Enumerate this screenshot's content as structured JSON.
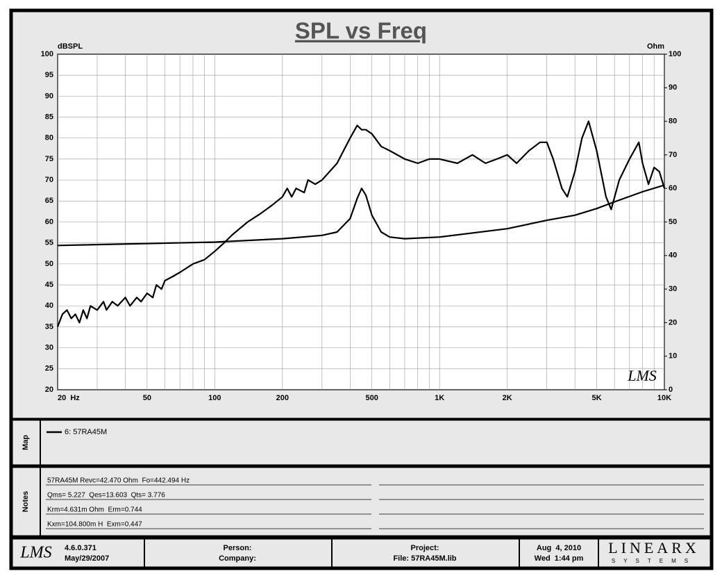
{
  "chart_data": {
    "type": "line",
    "title": "SPL vs Freq",
    "ylabel": "dBSPL",
    "y2label": "Ohm",
    "annotation": "LMS",
    "log_x": true,
    "grid": true,
    "xlim": [
      20,
      10000
    ],
    "xticks": [
      {
        "value": 20,
        "label": "20  Hz"
      },
      50,
      100,
      200,
      500,
      {
        "value": 1000,
        "label": "1K"
      },
      {
        "value": 2000,
        "label": "2K"
      },
      {
        "value": 5000,
        "label": "5K"
      },
      {
        "value": 10000,
        "label": "10K"
      }
    ],
    "xgrid": [
      30,
      40,
      60,
      70,
      80,
      90,
      300,
      400,
      600,
      700,
      800,
      900,
      3000,
      4000,
      6000,
      7000,
      8000,
      9000
    ],
    "ylim": [
      20,
      100
    ],
    "yticks": [
      20,
      25,
      30,
      35,
      40,
      45,
      50,
      55,
      60,
      65,
      70,
      75,
      80,
      85,
      90,
      95,
      100
    ],
    "y2lim": [
      0,
      100
    ],
    "y2ticks": [
      0,
      10,
      20,
      30,
      40,
      50,
      60,
      70,
      80,
      90,
      100
    ],
    "series": [
      {
        "color": "#000000",
        "x": [
          20,
          21,
          22,
          23,
          24,
          25,
          26,
          27,
          28,
          30,
          32,
          33,
          35,
          37,
          40,
          42,
          45,
          47,
          50,
          53,
          55,
          58,
          60,
          65,
          70,
          80,
          90,
          100,
          110,
          120,
          140,
          160,
          180,
          200,
          210,
          220,
          230,
          250,
          260,
          280,
          300,
          350,
          400,
          430,
          450,
          470,
          500,
          550,
          600,
          700,
          800,
          900,
          1000,
          1200,
          1400,
          1600,
          1800,
          2000,
          2200,
          2500,
          2800,
          3000,
          3200,
          3500,
          3700,
          4000,
          4300,
          4600,
          5000,
          5500,
          5800,
          6300,
          7000,
          7700,
          8000,
          8500,
          9000,
          9500,
          10000
        ],
        "values": [
          35,
          38,
          39,
          37,
          38,
          36,
          39,
          37,
          40,
          39,
          41,
          39,
          41,
          40,
          42,
          40,
          42,
          41,
          43,
          42,
          45,
          44,
          46,
          47,
          48,
          50,
          51,
          53,
          55,
          57,
          60,
          62,
          64,
          66,
          68,
          66,
          68,
          67,
          70,
          69,
          70,
          74,
          80,
          83,
          82,
          82,
          81,
          78,
          77,
          75,
          74,
          75,
          75,
          74,
          76,
          74,
          75,
          76,
          74,
          77,
          79,
          79,
          75,
          68,
          66,
          72,
          80,
          84,
          77,
          66,
          63,
          70,
          75,
          79,
          74,
          69,
          73,
          72,
          68
        ]
      },
      {
        "color": "#000000",
        "axis": "y2",
        "x": [
          20,
          100,
          200,
          300,
          350,
          400,
          430,
          450,
          470,
          500,
          550,
          600,
          700,
          1000,
          2000,
          3000,
          4000,
          5000,
          6000,
          8000,
          10000
        ],
        "values": [
          43,
          44,
          45,
          46,
          47,
          51,
          57,
          60,
          58,
          52,
          47,
          45.5,
          45,
          45.5,
          48,
          50.5,
          52,
          54,
          56,
          59,
          61
        ]
      }
    ]
  },
  "map": {
    "label": "Map",
    "entry": "6: 57RA45M"
  },
  "notes": {
    "label": "Notes",
    "lines": [
      "57RA45M Revc=42.470 Ohm  Fo=442.494 Hz",
      "Qms= 5.227  Qes=13.603  Qts= 3.776",
      "Krm=4.631m Ohm  Erm=0.744",
      "Kxm=104.800m H  Exm=0.447"
    ]
  },
  "footer": {
    "logo": "LMS",
    "version": "4.6.0.371",
    "version_date": "May/29/2007",
    "person": "Person:",
    "company": "Company:",
    "project": "Project:",
    "file": "File: 57RA45M.lib",
    "date": "Aug  4, 2010",
    "time": "Wed  1:44 pm",
    "brand": "LINEARX",
    "brand_sub": "SYSTEMS"
  }
}
